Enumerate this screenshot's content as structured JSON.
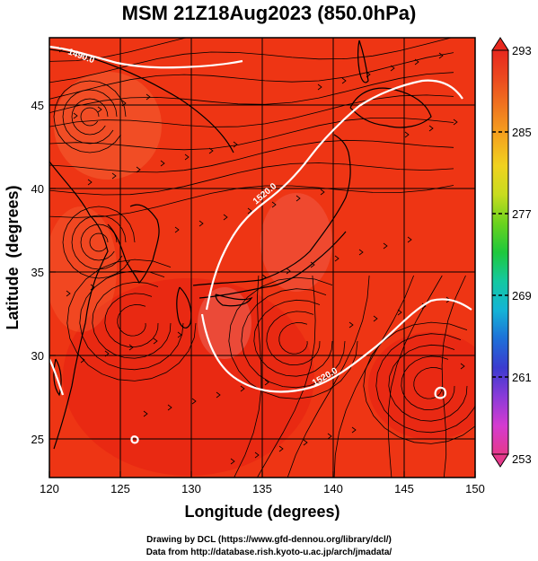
{
  "title": "MSM 21Z18Aug2023 (850.0hPa)",
  "x_axis": {
    "label": "Longitude (degrees)",
    "ticks": [
      "120",
      "125",
      "130",
      "135",
      "140",
      "145",
      "150"
    ]
  },
  "y_axis": {
    "label": "Latitude  (degrees)",
    "ticks": [
      "25",
      "30",
      "35",
      "40",
      "45"
    ]
  },
  "colorbar": {
    "ticks": [
      "293",
      "285",
      "277",
      "269",
      "261",
      "253"
    ],
    "range": [
      253,
      293
    ],
    "colors": [
      "#e53a8c",
      "#d43bd0",
      "#8a3bd8",
      "#3b3bcf",
      "#1e70d8",
      "#14b4d6",
      "#14c8a0",
      "#1ec83c",
      "#6ad21e",
      "#c8dc1e",
      "#f0d21e",
      "#f5a51e",
      "#f0781e",
      "#ec4a1e",
      "#e8281e"
    ]
  },
  "contours": [
    "1490.0",
    "1520.0",
    "1520.0"
  ],
  "features": {
    "land_color": "#f24a1a",
    "sea_color": "#ee2d12",
    "contour_color": "#ffffff",
    "streamline_color": "#000000"
  },
  "footer": {
    "line1": "Drawing by DCL (https://www.gfd-dennou.org/library/dcl/)",
    "line2": "Data from http://database.rish.kyoto-u.ac.jp/arch/jmadata/"
  }
}
